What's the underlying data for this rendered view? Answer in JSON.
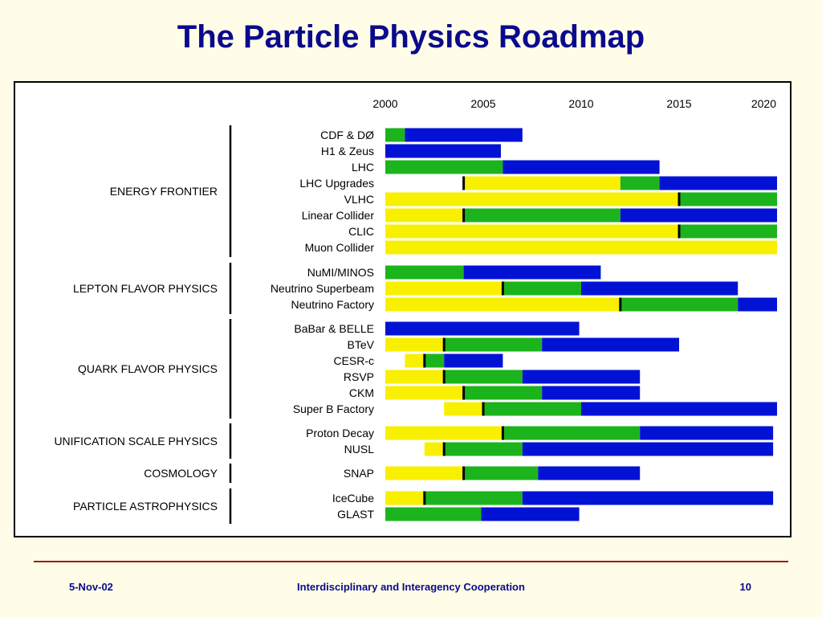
{
  "title": "The Particle Physics Roadmap",
  "footer": {
    "date": "5-Nov-02",
    "center": "Interdisciplinary and Interagency Cooperation",
    "page": "10"
  },
  "colors": {
    "yellow": "#f8f000",
    "green": "#1cb41c",
    "blue": "#0212d4",
    "marker": "#000000",
    "title": "#0a0a8c",
    "background": "#fffde8",
    "rule": "#9b1b1b"
  },
  "chart_data": {
    "type": "gantt",
    "title": "The Particle Physics Roadmap",
    "x_ticks": [
      "2000",
      "2005",
      "2010",
      "2015",
      "2020"
    ],
    "x_range": [
      2000,
      2020
    ],
    "groups": [
      {
        "name": "ENERGY FRONTIER",
        "rows": [
          {
            "label": "CDF & DØ",
            "segments": [
              {
                "color": "green",
                "start": 2000,
                "end": 2001
              },
              {
                "color": "blue",
                "start": 2001,
                "end": 2007
              }
            ]
          },
          {
            "label": "H1 & Zeus",
            "segments": [
              {
                "color": "blue",
                "start": 2000,
                "end": 2005.9
              }
            ]
          },
          {
            "label": "LHC",
            "segments": [
              {
                "color": "green",
                "start": 2000,
                "end": 2006
              },
              {
                "color": "blue",
                "start": 2006,
                "end": 2014
              }
            ]
          },
          {
            "label": "LHC Upgrades",
            "marker": 2004,
            "segments": [
              {
                "color": "yellow",
                "start": 2004,
                "end": 2012
              },
              {
                "color": "green",
                "start": 2012,
                "end": 2014
              },
              {
                "color": "blue",
                "start": 2014,
                "end": 2020
              }
            ]
          },
          {
            "label": "VLHC",
            "marker": 2015,
            "segments": [
              {
                "color": "yellow",
                "start": 2000,
                "end": 2015
              },
              {
                "color": "green",
                "start": 2015,
                "end": 2020
              }
            ]
          },
          {
            "label": "Linear Collider",
            "marker": 2004,
            "segments": [
              {
                "color": "yellow",
                "start": 2000,
                "end": 2004
              },
              {
                "color": "green",
                "start": 2004,
                "end": 2012
              },
              {
                "color": "blue",
                "start": 2012,
                "end": 2020
              }
            ]
          },
          {
            "label": "CLIC",
            "marker": 2015,
            "segments": [
              {
                "color": "yellow",
                "start": 2000,
                "end": 2015
              },
              {
                "color": "green",
                "start": 2015,
                "end": 2020
              }
            ]
          },
          {
            "label": "Muon Collider",
            "segments": [
              {
                "color": "yellow",
                "start": 2000,
                "end": 2020
              }
            ]
          }
        ]
      },
      {
        "name": "LEPTON FLAVOR PHYSICS",
        "rows": [
          {
            "label": "NuMI/MINOS",
            "segments": [
              {
                "color": "green",
                "start": 2000,
                "end": 2004
              },
              {
                "color": "blue",
                "start": 2004,
                "end": 2011
              }
            ]
          },
          {
            "label": "Neutrino Superbeam",
            "marker": 2006,
            "segments": [
              {
                "color": "yellow",
                "start": 2000,
                "end": 2006
              },
              {
                "color": "green",
                "start": 2006,
                "end": 2010
              },
              {
                "color": "blue",
                "start": 2010,
                "end": 2018
              }
            ]
          },
          {
            "label": "Neutrino Factory",
            "marker": 2012,
            "segments": [
              {
                "color": "yellow",
                "start": 2000,
                "end": 2012
              },
              {
                "color": "green",
                "start": 2012,
                "end": 2018
              },
              {
                "color": "blue",
                "start": 2018,
                "end": 2020
              }
            ]
          }
        ]
      },
      {
        "name": "QUARK FLAVOR PHYSICS",
        "rows": [
          {
            "label": "BaBar & BELLE",
            "segments": [
              {
                "color": "blue",
                "start": 2000,
                "end": 2009.9
              }
            ]
          },
          {
            "label": "BTeV",
            "marker": 2003,
            "segments": [
              {
                "color": "yellow",
                "start": 2000,
                "end": 2003
              },
              {
                "color": "green",
                "start": 2003,
                "end": 2008
              },
              {
                "color": "blue",
                "start": 2008,
                "end": 2015
              }
            ]
          },
          {
            "label": "CESR-c",
            "marker": 2002,
            "segments": [
              {
                "color": "yellow",
                "start": 2001,
                "end": 2002
              },
              {
                "color": "green",
                "start": 2002,
                "end": 2003
              },
              {
                "color": "blue",
                "start": 2003,
                "end": 2006
              }
            ]
          },
          {
            "label": "RSVP",
            "marker": 2003,
            "segments": [
              {
                "color": "yellow",
                "start": 2000,
                "end": 2003
              },
              {
                "color": "green",
                "start": 2003,
                "end": 2007
              },
              {
                "color": "blue",
                "start": 2007,
                "end": 2013
              }
            ]
          },
          {
            "label": "CKM",
            "marker": 2004,
            "segments": [
              {
                "color": "yellow",
                "start": 2000,
                "end": 2004
              },
              {
                "color": "green",
                "start": 2004,
                "end": 2008
              },
              {
                "color": "blue",
                "start": 2008,
                "end": 2013
              }
            ]
          },
          {
            "label": "Super B Factory",
            "marker": 2005,
            "segments": [
              {
                "color": "yellow",
                "start": 2003,
                "end": 2005
              },
              {
                "color": "green",
                "start": 2005,
                "end": 2010
              },
              {
                "color": "blue",
                "start": 2010,
                "end": 2020
              }
            ]
          }
        ]
      },
      {
        "name": "UNIFICATION SCALE PHYSICS",
        "rows": [
          {
            "label": "Proton Decay",
            "marker": 2006,
            "segments": [
              {
                "color": "yellow",
                "start": 2000,
                "end": 2006
              },
              {
                "color": "green",
                "start": 2006,
                "end": 2013
              },
              {
                "color": "blue",
                "start": 2013,
                "end": 2019.8
              }
            ]
          },
          {
            "label": "NUSL",
            "marker": 2003,
            "segments": [
              {
                "color": "yellow",
                "start": 2002,
                "end": 2003
              },
              {
                "color": "green",
                "start": 2003,
                "end": 2007
              },
              {
                "color": "blue",
                "start": 2007,
                "end": 2019.8
              }
            ]
          }
        ]
      },
      {
        "name": "COSMOLOGY",
        "rows": [
          {
            "label": "SNAP",
            "marker": 2004,
            "segments": [
              {
                "color": "yellow",
                "start": 2000,
                "end": 2004
              },
              {
                "color": "green",
                "start": 2004,
                "end": 2007.8
              },
              {
                "color": "blue",
                "start": 2007.8,
                "end": 2013
              }
            ]
          }
        ]
      },
      {
        "name": "PARTICLE ASTROPHYSICS",
        "rows": [
          {
            "label": "IceCube",
            "marker": 2002,
            "segments": [
              {
                "color": "yellow",
                "start": 2000,
                "end": 2002
              },
              {
                "color": "green",
                "start": 2002,
                "end": 2007
              },
              {
                "color": "blue",
                "start": 2007,
                "end": 2019.8
              }
            ]
          },
          {
            "label": "GLAST",
            "segments": [
              {
                "color": "green",
                "start": 2000,
                "end": 2004.9
              },
              {
                "color": "blue",
                "start": 2004.9,
                "end": 2009.9
              }
            ]
          }
        ]
      }
    ]
  }
}
